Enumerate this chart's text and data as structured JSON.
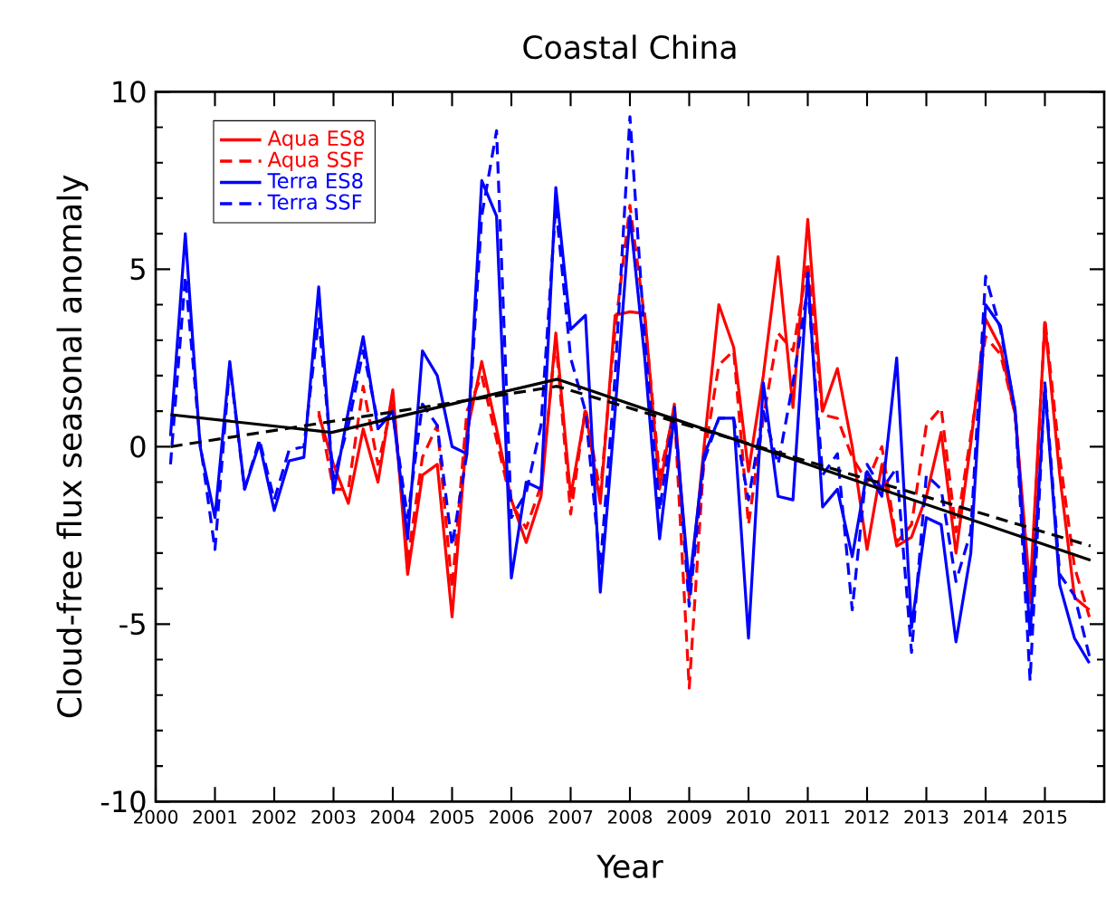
{
  "chart_data": {
    "type": "line",
    "title": "Coastal China",
    "xlabel": "Year",
    "ylabel": "Cloud-free flux seasonal anomaly",
    "xlim": [
      2000,
      2016
    ],
    "ylim": [
      -10,
      10
    ],
    "xticks": [
      2000,
      2001,
      2002,
      2003,
      2004,
      2005,
      2006,
      2007,
      2008,
      2009,
      2010,
      2011,
      2012,
      2013,
      2014,
      2015
    ],
    "yticks": [
      -10,
      -5,
      0,
      5,
      10
    ],
    "legend": "top left",
    "series": [
      {
        "name": "Aqua ES8",
        "color": "#ff0000",
        "line_style": "solid",
        "x": [
          2002.75,
          2003,
          2003.25,
          2003.5,
          2003.75,
          2004,
          2004.25,
          2004.5,
          2004.75,
          2005,
          2005.25,
          2005.5,
          2005.75,
          2006,
          2006.25,
          2006.5,
          2006.75,
          2007,
          2007.25,
          2007.5,
          2007.75,
          2008,
          2008.25,
          2008.5,
          2008.75,
          2009,
          2009.25,
          2009.5,
          2009.75,
          2010,
          2010.25,
          2010.5,
          2010.75,
          2011,
          2011.25,
          2011.5,
          2011.75,
          2012,
          2012.25,
          2012.5,
          2012.75,
          2013,
          2013.25,
          2013.5,
          2013.75,
          2014,
          2014.25,
          2014.5,
          2014.75,
          2015,
          2015.25,
          2015.5,
          2015.75
        ],
        "values": [
          0.9,
          -0.5,
          -1.6,
          0.5,
          -1.0,
          1.6,
          -3.6,
          -0.8,
          -0.5,
          -4.8,
          0.4,
          2.4,
          0.5,
          -1.5,
          -2.7,
          -1.4,
          3.2,
          -1.4,
          1.0,
          -1.6,
          3.7,
          3.8,
          3.75,
          -1.2,
          1.2,
          -4.25,
          0,
          4.0,
          2.8,
          -0.7,
          2.0,
          5.35,
          1.1,
          6.4,
          1.0,
          2.2,
          0,
          -2.9,
          -0.5,
          -2.8,
          -2.55,
          -1.4,
          0.4,
          -3.0,
          0.1,
          3.6,
          2.8,
          0.9,
          -4.1,
          3.5,
          -0.8,
          -4.25,
          -4.6
        ]
      },
      {
        "name": "Aqua SSF",
        "color": "#ff0000",
        "line_style": "dashed",
        "x": [
          2002.75,
          2003,
          2003.25,
          2003.5,
          2003.75,
          2004,
          2004.25,
          2004.5,
          2004.75,
          2005,
          2005.25,
          2005.5,
          2005.75,
          2006,
          2006.25,
          2006.5,
          2006.75,
          2007,
          2007.25,
          2007.5,
          2007.75,
          2008,
          2008.25,
          2008.5,
          2008.75,
          2009,
          2009.25,
          2009.5,
          2009.75,
          2010,
          2010.25,
          2010.5,
          2010.75,
          2011,
          2011.25,
          2011.5,
          2011.75,
          2012,
          2012.25,
          2012.5,
          2012.75,
          2013,
          2013.25,
          2013.5,
          2013.75,
          2014,
          2014.25,
          2014.5,
          2014.75,
          2015,
          2015.25,
          2015.5,
          2015.75
        ],
        "values": [
          1.0,
          -1.2,
          -1.2,
          1.7,
          -0.5,
          1.3,
          -3.2,
          -0.3,
          0.6,
          -4.0,
          1.0,
          2.0,
          0.2,
          -1.6,
          -2.3,
          -1.1,
          3.0,
          -1.9,
          1.1,
          -1.3,
          3.3,
          6.8,
          3.6,
          -0.8,
          1.0,
          -6.8,
          -0.3,
          2.3,
          2.7,
          -2.2,
          0.8,
          3.2,
          2.7,
          5.2,
          0.9,
          0.8,
          -0.3,
          -1.0,
          0.0,
          -2.7,
          -2.2,
          0.6,
          1.1,
          -2.4,
          0.3,
          3.1,
          2.6,
          0.9,
          -4.5,
          3.6,
          -0.3,
          -3.4,
          -4.8
        ]
      },
      {
        "name": "Terra ES8",
        "color": "#0000ff",
        "line_style": "solid",
        "x": [
          2000.25,
          2000.5,
          2000.75,
          2001,
          2001.25,
          2001.5,
          2001.75,
          2002,
          2002.25,
          2002.5,
          2002.75,
          2003,
          2003.25,
          2003.5,
          2003.75,
          2004,
          2004.25,
          2004.5,
          2004.75,
          2005,
          2005.25,
          2005.5,
          2005.75,
          2006,
          2006.25,
          2006.5,
          2006.75,
          2007,
          2007.25,
          2007.5,
          2007.75,
          2008,
          2008.25,
          2008.5,
          2008.75,
          2009,
          2009.25,
          2009.5,
          2009.75,
          2010,
          2010.25,
          2010.5,
          2010.75,
          2011,
          2011.25,
          2011.5,
          2011.75,
          2012,
          2012.25,
          2012.5,
          2012.75,
          2013,
          2013.25,
          2013.5,
          2013.75,
          2014,
          2014.25,
          2014.5,
          2014.75,
          2015,
          2015.25,
          2015.5,
          2015.75
        ],
        "values": [
          0.3,
          6.0,
          0.0,
          -2.0,
          2.4,
          -1.2,
          0.1,
          -1.8,
          -0.4,
          -0.3,
          4.5,
          -1.3,
          1.0,
          3.1,
          0.5,
          1.0,
          -2.6,
          2.7,
          2.0,
          0.0,
          -0.2,
          7.5,
          6.5,
          -3.7,
          -1.0,
          -1.2,
          7.3,
          3.3,
          3.7,
          -4.1,
          1.0,
          6.5,
          2.5,
          -2.6,
          0.9,
          -3.9,
          -0.25,
          0.8,
          0.8,
          -5.4,
          1.8,
          -1.4,
          -1.5,
          4.9,
          -1.7,
          -1.2,
          -3.1,
          -0.7,
          -1.4,
          2.5,
          -5.1,
          -2.0,
          -2.2,
          -5.5,
          -3.0,
          4.0,
          3.4,
          1.0,
          -5.3,
          1.7,
          -3.9,
          -5.4,
          -6.1
        ]
      },
      {
        "name": "Terra SSF",
        "color": "#0000ff",
        "line_style": "dashed",
        "x": [
          2000.25,
          2000.5,
          2000.75,
          2001,
          2001.25,
          2001.5,
          2001.75,
          2002,
          2002.25,
          2002.5,
          2002.75,
          2003,
          2003.25,
          2003.5,
          2003.75,
          2004,
          2004.25,
          2004.5,
          2004.75,
          2005,
          2005.25,
          2005.5,
          2005.75,
          2006,
          2006.25,
          2006.5,
          2006.75,
          2007,
          2007.25,
          2007.5,
          2007.75,
          2008,
          2008.25,
          2008.5,
          2008.75,
          2009,
          2009.25,
          2009.5,
          2009.75,
          2010,
          2010.25,
          2010.5,
          2010.75,
          2011,
          2011.25,
          2011.5,
          2011.75,
          2012,
          2012.25,
          2012.5,
          2012.75,
          2013,
          2013.25,
          2013.5,
          2013.75,
          2014,
          2014.25,
          2014.5,
          2014.75,
          2015,
          2015.25,
          2015.5,
          2015.75
        ],
        "values": [
          -0.5,
          4.8,
          0.1,
          -2.9,
          2.3,
          -1.2,
          0.2,
          -1.5,
          -0.1,
          0.0,
          3.6,
          -0.9,
          0.6,
          2.7,
          0.7,
          0.9,
          -2.0,
          1.2,
          0.6,
          -2.8,
          -0.2,
          6.5,
          8.9,
          -2.0,
          -1.3,
          0.6,
          6.8,
          2.5,
          1.0,
          -3.4,
          2.0,
          9.3,
          3.0,
          -1.8,
          1.1,
          -4.5,
          -0.4,
          0.8,
          0.8,
          -1.5,
          1.0,
          -0.5,
          1.8,
          4.5,
          -0.8,
          -0.2,
          -4.6,
          -0.5,
          -1.2,
          -0.6,
          -5.8,
          -0.8,
          -1.2,
          -3.8,
          -2.4,
          4.8,
          3.3,
          1.0,
          -6.6,
          1.8,
          -3.6,
          -4.2,
          -5.9
        ]
      },
      {
        "type": "line",
        "color": "#000000",
        "line_style": "solid",
        "x": [
          2000.25,
          2002.97,
          2006.77,
          2015.77
        ],
        "values": [
          0.9,
          0.4,
          1.9,
          -3.2
        ]
      },
      {
        "type": "line",
        "color": "#000000",
        "line_style": "dashed",
        "x": [
          2000.25,
          2006.77,
          2015.77
        ],
        "values": [
          0.0,
          1.7,
          -2.8
        ]
      }
    ]
  }
}
